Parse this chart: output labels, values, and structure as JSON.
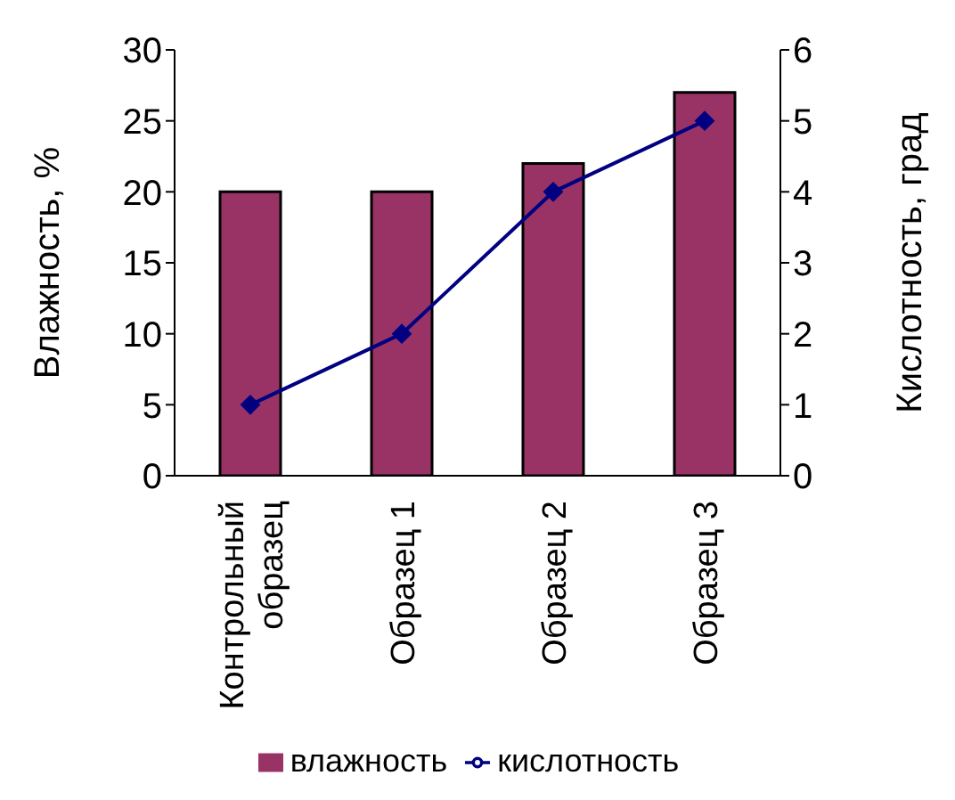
{
  "chart_data": {
    "type": "bar",
    "categories": [
      "Контрольный образец",
      "Образец 1",
      "Образец 2",
      "Образец 3"
    ],
    "series": [
      {
        "name": "влажность",
        "color": "#993366",
        "values": [
          20,
          20,
          22,
          27
        ]
      },
      {
        "name": "кислотность",
        "type": "line",
        "axis": "y2",
        "color": "#000080",
        "values": [
          1,
          2,
          4,
          5
        ]
      }
    ],
    "ylabel": "Влажность, %",
    "y2label": "Кислотность, град",
    "ylim": [
      0,
      30
    ],
    "yticks": [
      0,
      5,
      10,
      15,
      20,
      25,
      30
    ],
    "y2lim": [
      0,
      6
    ],
    "y2ticks": [
      0,
      1,
      2,
      3,
      4,
      5,
      6
    ],
    "grid": false,
    "legend": "bottom",
    "marker": "diamond"
  }
}
